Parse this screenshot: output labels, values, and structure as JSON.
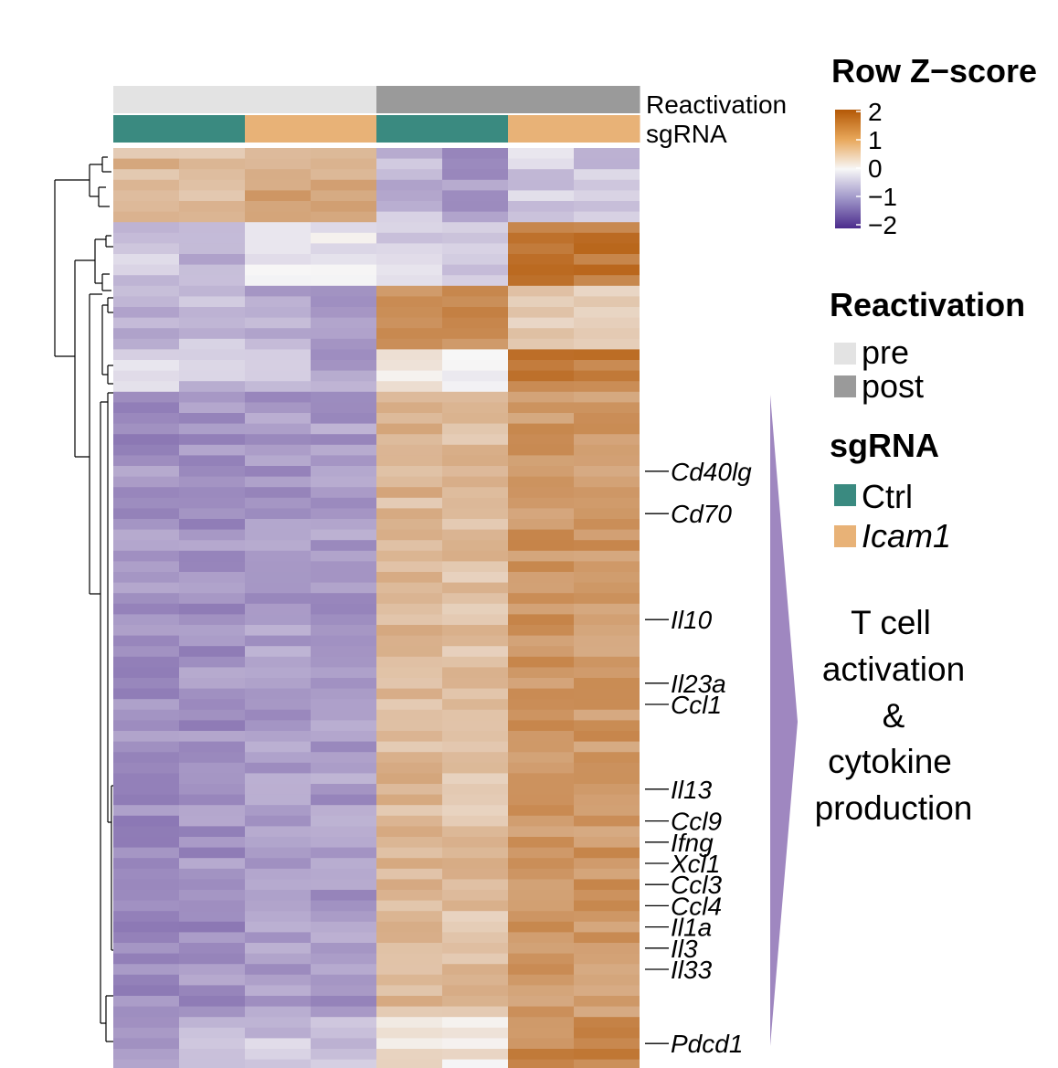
{
  "legend": {
    "zscore_title": "Row Z−score",
    "zscore_ticks": [
      "2",
      "1",
      "0",
      "−1",
      "−2"
    ],
    "reactivation_title": "Reactivation",
    "reactivation_items": [
      {
        "label": "pre",
        "color": "#e3e3e3"
      },
      {
        "label": "post",
        "color": "#9a9a9a"
      }
    ],
    "sgrna_title": "sgRNA",
    "sgrna_items": [
      {
        "label": "Ctrl",
        "color": "#3a8a80"
      },
      {
        "label": "Icam1",
        "color": "#e8b277",
        "italic": true
      }
    ]
  },
  "annotation_labels": {
    "reactivation": "Reactivation",
    "sgrna": "sgRNA"
  },
  "arrow_label_lines": [
    "T cell",
    "activation",
    "&",
    "cytokine",
    "production"
  ],
  "colors": {
    "low": "#4b2b8c",
    "mid": "#f7f7f7",
    "high": "#b35806",
    "arrow": "#9f87c0"
  },
  "chart_data": {
    "type": "heatmap",
    "columns": [
      {
        "reactivation": "pre",
        "sgrna": "Ctrl"
      },
      {
        "reactivation": "pre",
        "sgrna": "Ctrl"
      },
      {
        "reactivation": "pre",
        "sgrna": "Icam1"
      },
      {
        "reactivation": "pre",
        "sgrna": "Icam1"
      },
      {
        "reactivation": "post",
        "sgrna": "Ctrl"
      },
      {
        "reactivation": "post",
        "sgrna": "Ctrl"
      },
      {
        "reactivation": "post",
        "sgrna": "Icam1"
      },
      {
        "reactivation": "post",
        "sgrna": "Icam1"
      }
    ],
    "color_scale": {
      "min": -2,
      "max": 2
    },
    "row_blocks": [
      {
        "rows": 7,
        "values": [
          0.8,
          0.7,
          1.0,
          0.9,
          -0.6,
          -0.9,
          -0.4,
          -0.5
        ]
      },
      {
        "rows": 6,
        "values": [
          -0.5,
          -0.6,
          -0.2,
          -0.1,
          -0.3,
          -0.6,
          1.6,
          1.6
        ]
      },
      {
        "rows": 6,
        "values": [
          -0.8,
          -0.6,
          -0.8,
          -0.8,
          1.4,
          1.4,
          0.5,
          0.4
        ]
      },
      {
        "rows": 4,
        "values": [
          -0.3,
          -0.5,
          -0.4,
          -0.8,
          0.1,
          -0.2,
          1.5,
          1.5
        ]
      },
      {
        "rows": 59,
        "values": [
          -1.0,
          -1.0,
          -0.9,
          -0.9,
          0.8,
          0.7,
          1.2,
          1.2
        ]
      },
      {
        "rows": 5,
        "values": [
          -0.8,
          -0.6,
          -0.5,
          -0.6,
          0.3,
          0.2,
          1.4,
          1.4
        ]
      }
    ],
    "gene_labels": [
      {
        "label": "Cd40lg",
        "row": 30
      },
      {
        "label": "Cd70",
        "row": 34
      },
      {
        "label": "Il10",
        "row": 44
      },
      {
        "label": "Il23a",
        "row": 50
      },
      {
        "label": "Ccl1",
        "row": 52
      },
      {
        "label": "Il13",
        "row": 60
      },
      {
        "label": "Ccl9",
        "row": 63
      },
      {
        "label": "Ifng",
        "row": 65
      },
      {
        "label": "Xcl1",
        "row": 67
      },
      {
        "label": "Ccl3",
        "row": 69
      },
      {
        "label": "Ccl4",
        "row": 71
      },
      {
        "label": "Il1a",
        "row": 73
      },
      {
        "label": "Il3",
        "row": 75
      },
      {
        "label": "Il33",
        "row": 77
      },
      {
        "label": "Pdcd1",
        "row": 84
      }
    ]
  }
}
